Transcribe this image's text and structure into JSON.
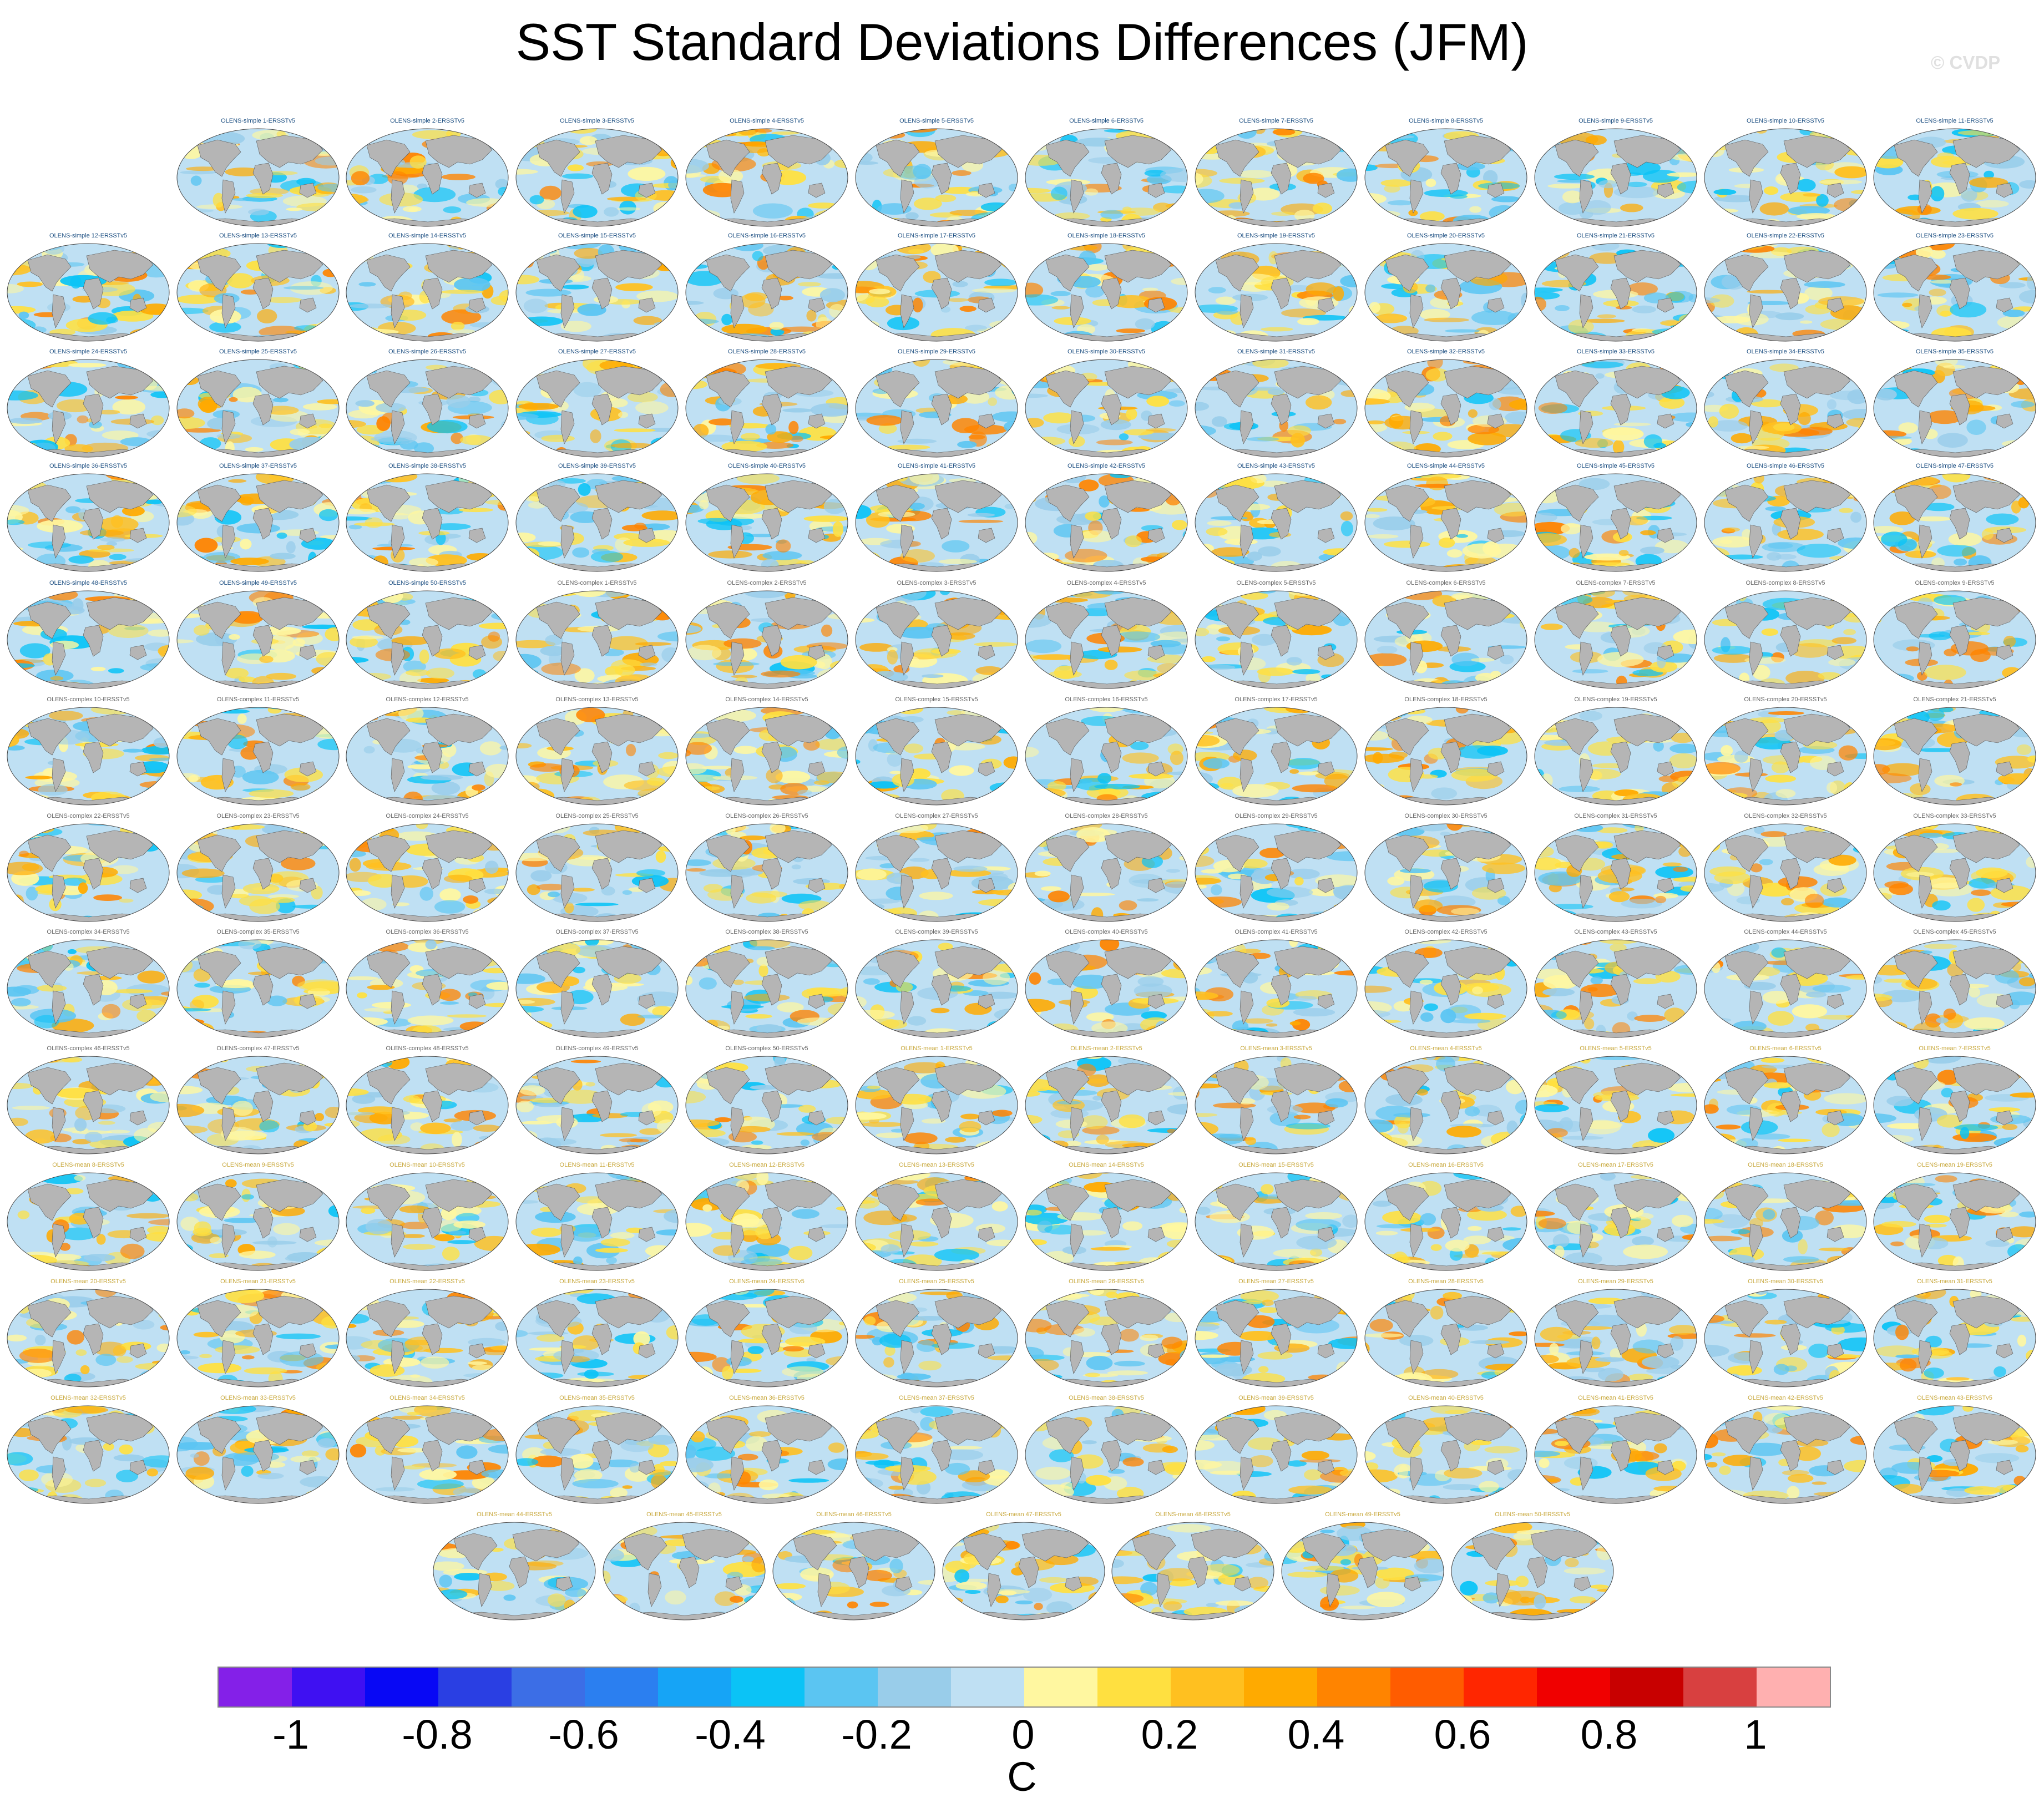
{
  "title": "SST Standard Deviations Differences (JFM)",
  "watermark": "© CVDP",
  "panel_groups": [
    {
      "name": "OLENS-simple",
      "count": 50,
      "label_color": "#1a4d80"
    },
    {
      "name": "OLENS-complex",
      "count": 50,
      "label_color": "#666666"
    },
    {
      "name": "OLENS-mean",
      "count": 50,
      "label_color": "#c8a83c"
    }
  ],
  "label_suffix": "-ERSSTv5",
  "colors": {
    "ocean_base": "#bfe0f3",
    "land": "#b5b5b5",
    "coast": "#555555"
  },
  "colorbar": {
    "colors": [
      "#8420e8",
      "#3f10f2",
      "#0808f5",
      "#2a3fe3",
      "#3c6ee6",
      "#2b7ff0",
      "#16a4f6",
      "#0bc3f6",
      "#5bc5f2",
      "#99cdea",
      "#bfe0f3",
      "#fff7a0",
      "#ffe040",
      "#ffc020",
      "#ffaa00",
      "#ff8400",
      "#ff5c00",
      "#ff2600",
      "#f00000",
      "#c80000",
      "#d84040",
      "#ffb0b0"
    ],
    "tick_labels": [
      "-1",
      "-0.8",
      "-0.6",
      "-0.4",
      "-0.2",
      "0",
      "0.2",
      "0.4",
      "0.6",
      "0.8",
      "1"
    ],
    "unit": "C"
  }
}
